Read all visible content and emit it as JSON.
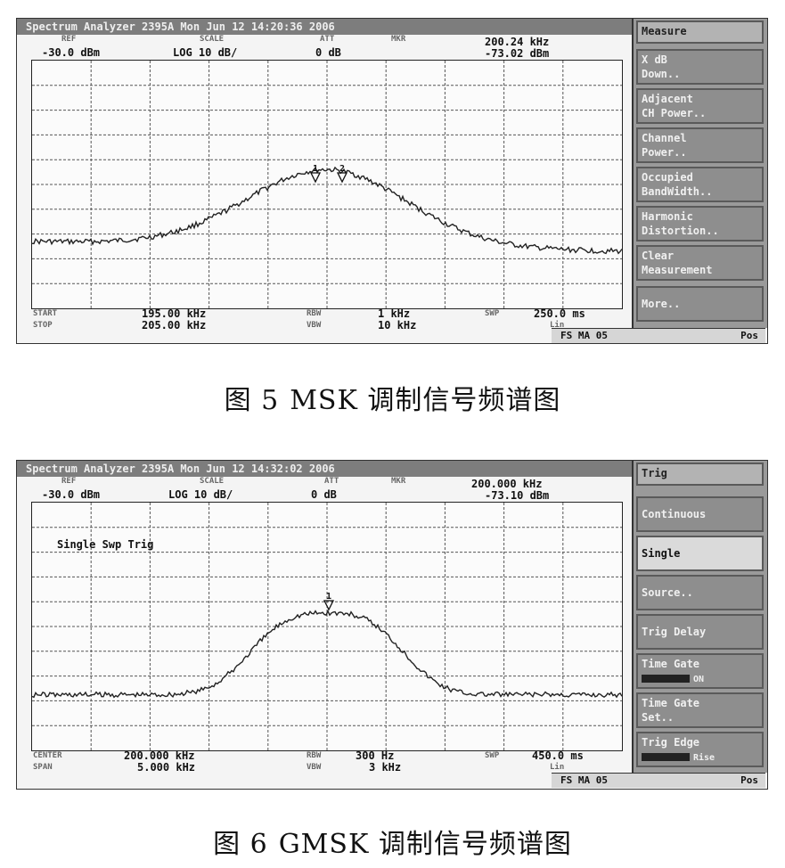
{
  "figures": [
    {
      "title_bar": "Spectrum Analyzer 2395A  Mon Jun 12 14:20:36 2006",
      "header": {
        "ref_label": "REF",
        "ref_value": "-30.0 dBm",
        "scale_label": "SCALE",
        "scale_value": "LOG 10 dB/",
        "att_label": "ATT",
        "att_value": "0 dB",
        "marker_label": "MKR",
        "marker_freq": "200.24 kHz",
        "marker_level": "-73.02 dBm"
      },
      "footer": {
        "left1_label": "START",
        "left1_value": "195.00 kHz",
        "left2_label": "STOP",
        "left2_value": "205.00 kHz",
        "mid1_label": "RBW",
        "mid1_value": "1 kHz",
        "mid2_label": "VBW",
        "mid2_value": "10 kHz",
        "right1_label": "SWP",
        "right1_value": "250.0 ms",
        "right2_value": "Lin"
      },
      "status": {
        "left": "FS MA 05",
        "right": "Pos"
      },
      "softkeys": [
        {
          "line1": "Measure",
          "line2": ""
        },
        {
          "line1": "X dB",
          "line2": "Down.."
        },
        {
          "line1": "Adjacent",
          "line2": "CH Power.."
        },
        {
          "line1": "Channel",
          "line2": "Power.."
        },
        {
          "line1": "Occupied",
          "line2": "BandWidth.."
        },
        {
          "line1": "Harmonic",
          "line2": "Distortion.."
        },
        {
          "line1": "Clear",
          "line2": "Measurement"
        },
        {
          "line1": "More..",
          "line2": ""
        }
      ],
      "markers": [
        "1",
        "2"
      ],
      "caption_num": "图 5",
      "caption_text": "MSK 调制信号频谱图"
    },
    {
      "title_bar": "Spectrum Analyzer 2395A  Mon Jun 12 14:32:02 2006",
      "header": {
        "ref_label": "REF",
        "ref_value": "-30.0 dBm",
        "scale_label": "SCALE",
        "scale_value": "LOG 10 dB/",
        "att_label": "ATT",
        "att_value": "0 dB",
        "marker_label": "MKR",
        "marker_freq": "200.000 kHz",
        "marker_level": "-73.10 dBm"
      },
      "annotation": "Single Swp Trig",
      "footer": {
        "left1_label": "CENTER",
        "left1_value": "200.000 kHz",
        "left2_label": "SPAN",
        "left2_value": "5.000 kHz",
        "mid1_label": "RBW",
        "mid1_value": "300 Hz",
        "mid2_label": "VBW",
        "mid2_value": "3 kHz",
        "right1_label": "SWP",
        "right1_value": "450.0 ms",
        "right2_value": "Lin"
      },
      "status": {
        "left": "FS MA 05",
        "right": "Pos"
      },
      "softkeys": [
        {
          "line1": "Trig",
          "line2": ""
        },
        {
          "line1": "Continuous",
          "line2": ""
        },
        {
          "line1": "Single",
          "line2": ""
        },
        {
          "line1": "Source..",
          "line2": ""
        },
        {
          "line1": "Trig Delay",
          "line2": ""
        },
        {
          "line1": "Time Gate",
          "line2": "ON"
        },
        {
          "line1": "Time Gate",
          "line2": "Set.."
        },
        {
          "line1": "Trig Edge",
          "line2": "Rise"
        }
      ],
      "markers": [
        "1"
      ],
      "caption_num": "图 6",
      "caption_text": "GMSK 调制信号频谱图"
    }
  ]
}
